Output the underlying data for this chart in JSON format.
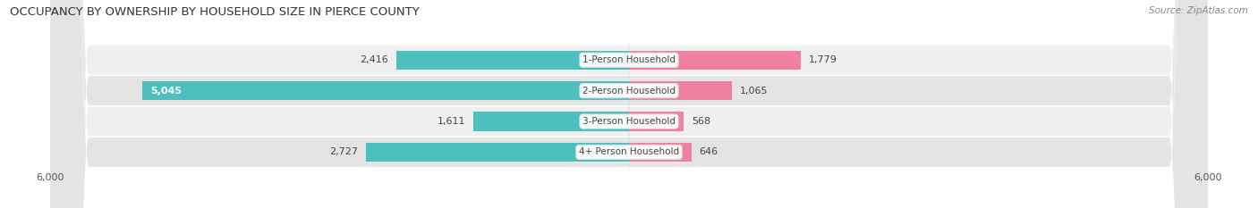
{
  "title": "OCCUPANCY BY OWNERSHIP BY HOUSEHOLD SIZE IN PIERCE COUNTY",
  "source": "Source: ZipAtlas.com",
  "categories": [
    "1-Person Household",
    "2-Person Household",
    "3-Person Household",
    "4+ Person Household"
  ],
  "owner_values": [
    2416,
    5045,
    1611,
    2727
  ],
  "renter_values": [
    1779,
    1065,
    568,
    646
  ],
  "max_axis": 6000,
  "owner_color": "#4dbfbf",
  "renter_color": "#f080a0",
  "row_colors": [
    "#efefef",
    "#e4e4e4",
    "#efefef",
    "#e4e4e4"
  ],
  "bar_height": 0.62,
  "title_fontsize": 9.5,
  "source_fontsize": 7.5,
  "value_fontsize": 8,
  "cat_fontsize": 7.5,
  "tick_fontsize": 8,
  "legend_fontsize": 8.5
}
